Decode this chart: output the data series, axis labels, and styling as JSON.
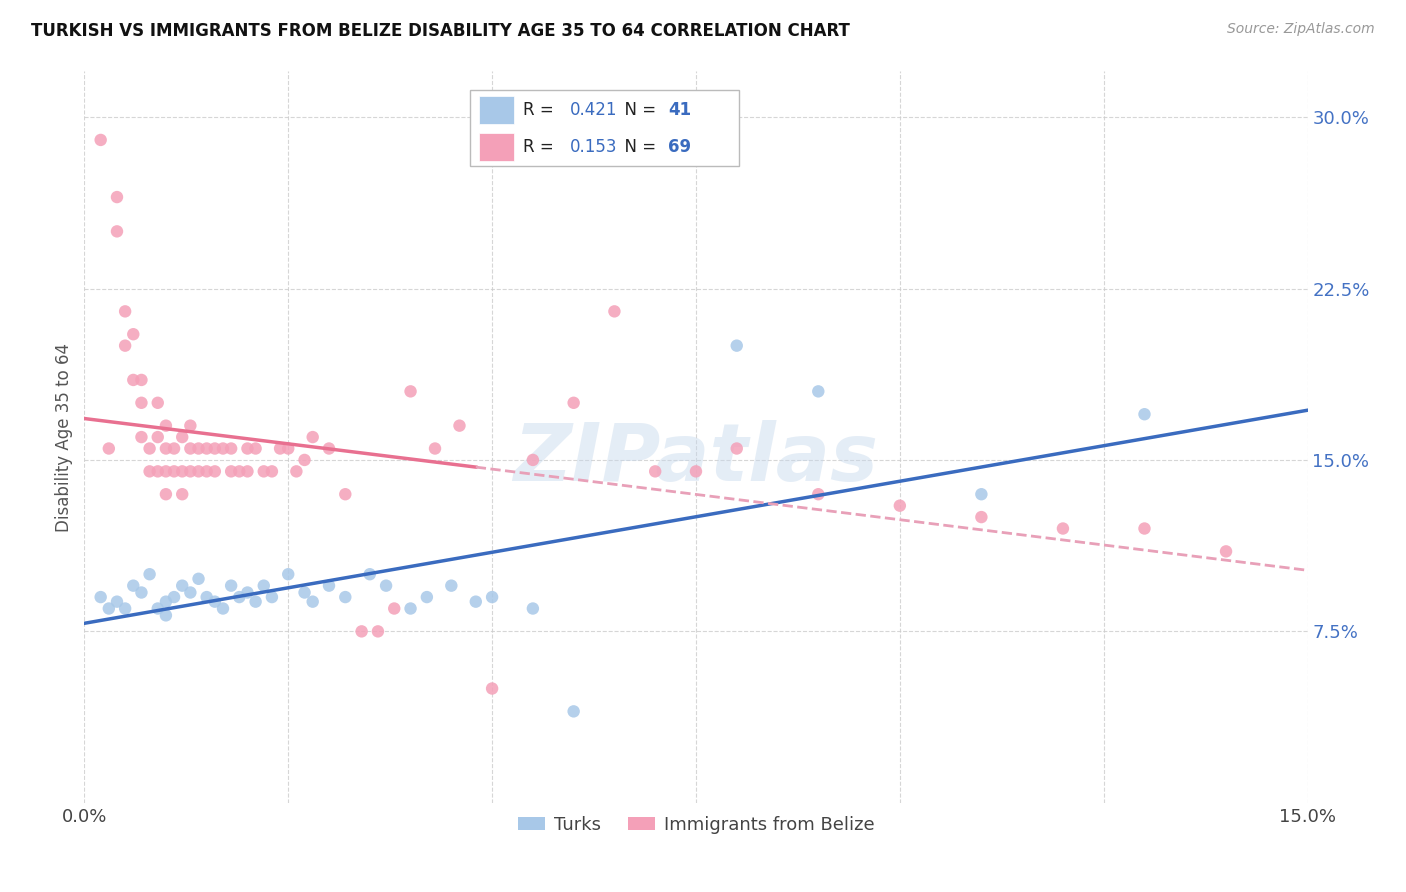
{
  "title": "TURKISH VS IMMIGRANTS FROM BELIZE DISABILITY AGE 35 TO 64 CORRELATION CHART",
  "source": "Source: ZipAtlas.com",
  "ylabel": "Disability Age 35 to 64",
  "xlim": [
    0.0,
    0.15
  ],
  "ylim": [
    0.0,
    0.32
  ],
  "turks_R": 0.421,
  "turks_N": 41,
  "belize_R": 0.153,
  "belize_N": 69,
  "turks_color": "#a8c8e8",
  "belize_color": "#f4a0b8",
  "turks_line_color": "#3a6bbf",
  "belize_line_color": "#e87090",
  "belize_dash_color": "#e8a0b8",
  "grid_color": "#cccccc",
  "background_color": "#ffffff",
  "turks_x": [
    0.002,
    0.003,
    0.004,
    0.005,
    0.006,
    0.007,
    0.008,
    0.009,
    0.01,
    0.01,
    0.011,
    0.012,
    0.013,
    0.014,
    0.015,
    0.016,
    0.017,
    0.018,
    0.019,
    0.02,
    0.021,
    0.022,
    0.023,
    0.025,
    0.027,
    0.028,
    0.03,
    0.032,
    0.035,
    0.037,
    0.04,
    0.042,
    0.045,
    0.048,
    0.05,
    0.055,
    0.06,
    0.08,
    0.09,
    0.11,
    0.13
  ],
  "turks_y": [
    0.09,
    0.085,
    0.088,
    0.085,
    0.095,
    0.092,
    0.1,
    0.085,
    0.088,
    0.082,
    0.09,
    0.095,
    0.092,
    0.098,
    0.09,
    0.088,
    0.085,
    0.095,
    0.09,
    0.092,
    0.088,
    0.095,
    0.09,
    0.1,
    0.092,
    0.088,
    0.095,
    0.09,
    0.1,
    0.095,
    0.085,
    0.09,
    0.095,
    0.088,
    0.09,
    0.085,
    0.04,
    0.2,
    0.18,
    0.135,
    0.17
  ],
  "belize_x": [
    0.002,
    0.003,
    0.004,
    0.004,
    0.005,
    0.005,
    0.006,
    0.006,
    0.007,
    0.007,
    0.007,
    0.008,
    0.008,
    0.009,
    0.009,
    0.009,
    0.01,
    0.01,
    0.01,
    0.01,
    0.011,
    0.011,
    0.012,
    0.012,
    0.012,
    0.013,
    0.013,
    0.013,
    0.014,
    0.014,
    0.015,
    0.015,
    0.016,
    0.016,
    0.017,
    0.018,
    0.018,
    0.019,
    0.02,
    0.02,
    0.021,
    0.022,
    0.023,
    0.024,
    0.025,
    0.026,
    0.027,
    0.028,
    0.03,
    0.032,
    0.034,
    0.036,
    0.038,
    0.04,
    0.043,
    0.046,
    0.05,
    0.055,
    0.06,
    0.065,
    0.07,
    0.075,
    0.08,
    0.09,
    0.1,
    0.11,
    0.12,
    0.13,
    0.14
  ],
  "belize_y": [
    0.29,
    0.155,
    0.265,
    0.25,
    0.215,
    0.2,
    0.205,
    0.185,
    0.185,
    0.175,
    0.16,
    0.155,
    0.145,
    0.175,
    0.16,
    0.145,
    0.165,
    0.155,
    0.145,
    0.135,
    0.155,
    0.145,
    0.16,
    0.145,
    0.135,
    0.165,
    0.155,
    0.145,
    0.155,
    0.145,
    0.155,
    0.145,
    0.155,
    0.145,
    0.155,
    0.155,
    0.145,
    0.145,
    0.155,
    0.145,
    0.155,
    0.145,
    0.145,
    0.155,
    0.155,
    0.145,
    0.15,
    0.16,
    0.155,
    0.135,
    0.075,
    0.075,
    0.085,
    0.18,
    0.155,
    0.165,
    0.05,
    0.15,
    0.175,
    0.215,
    0.145,
    0.145,
    0.155,
    0.135,
    0.13,
    0.125,
    0.12,
    0.12,
    0.11
  ]
}
